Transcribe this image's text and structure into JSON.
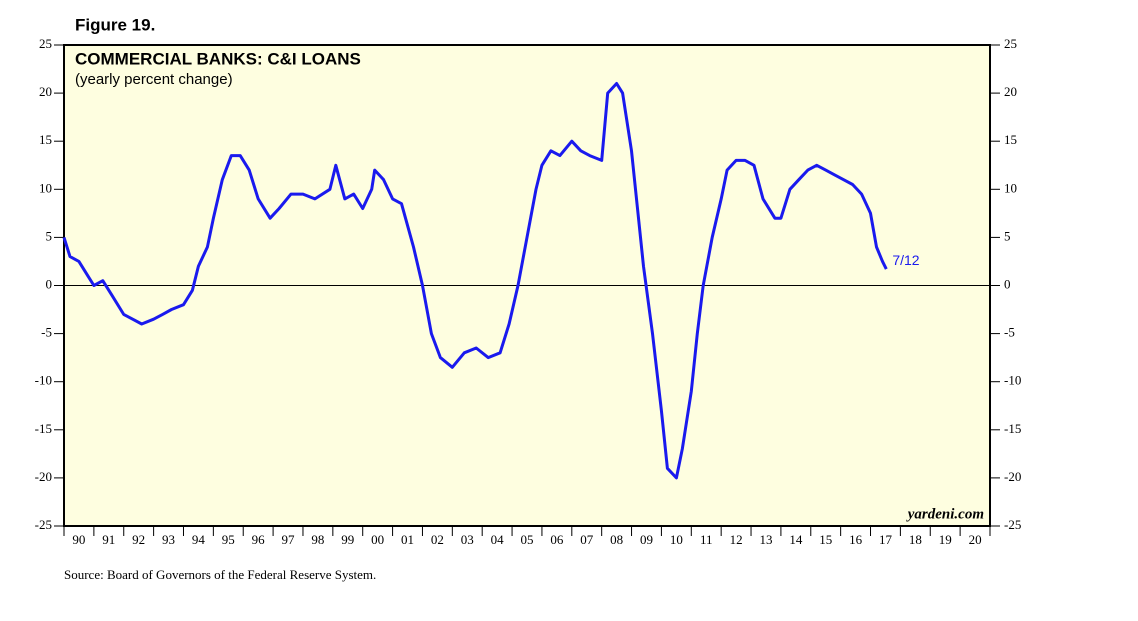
{
  "chart_data": {
    "type": "line",
    "figure_label": "Figure 19.",
    "title": "COMMERCIAL BANKS: C&I LOANS",
    "subtitle": "(yearly percent change)",
    "annotation": "7/12",
    "watermark": "yardeni.com",
    "source": "Source: Board of Governors of the Federal Reserve System.",
    "color": "#1a1aee",
    "x": [
      1990.0,
      1990.2,
      1990.5,
      1990.8,
      1991.0,
      1991.3,
      1991.6,
      1992.0,
      1992.3,
      1992.6,
      1993.0,
      1993.3,
      1993.6,
      1994.0,
      1994.3,
      1994.5,
      1994.8,
      1995.0,
      1995.3,
      1995.6,
      1995.9,
      1996.2,
      1996.5,
      1996.9,
      1997.2,
      1997.6,
      1998.0,
      1998.4,
      1998.9,
      1999.1,
      1999.4,
      1999.7,
      2000.0,
      2000.3,
      2000.4,
      2000.7,
      2001.0,
      2001.3,
      2001.7,
      2002.0,
      2002.3,
      2002.6,
      2003.0,
      2003.4,
      2003.8,
      2004.2,
      2004.6,
      2004.9,
      2005.2,
      2005.5,
      2005.8,
      2006.0,
      2006.3,
      2006.6,
      2007.0,
      2007.3,
      2007.6,
      2008.0,
      2008.2,
      2008.5,
      2008.7,
      2009.0,
      2009.2,
      2009.4,
      2009.7,
      2010.0,
      2010.2,
      2010.5,
      2010.7,
      2011.0,
      2011.2,
      2011.4,
      2011.7,
      2012.0,
      2012.2,
      2012.5,
      2012.8,
      2013.1,
      2013.4,
      2013.8,
      2014.0,
      2014.3,
      2014.6,
      2014.9,
      2015.2,
      2015.5,
      2015.8,
      2016.1,
      2016.4,
      2016.7,
      2017.0,
      2017.2,
      2017.4,
      2017.53
    ],
    "values": [
      5,
      3,
      2.5,
      1,
      0,
      0.5,
      -1,
      -3,
      -3.5,
      -4,
      -3.5,
      -3,
      -2.5,
      -2,
      -0.5,
      2,
      4,
      7,
      11,
      13.5,
      13.5,
      12,
      9,
      7,
      8,
      9.5,
      9.5,
      9,
      10,
      12.5,
      9,
      9.5,
      8,
      10,
      12,
      11,
      9,
      8.5,
      4,
      0,
      -5,
      -7.5,
      -8.5,
      -7,
      -6.5,
      -7.5,
      -7,
      -4,
      0,
      5,
      10,
      12.5,
      14,
      13.5,
      15,
      14,
      13.5,
      13,
      20,
      21,
      20,
      14,
      8,
      2,
      -5,
      -13,
      -19,
      -20,
      -17,
      -11,
      -5,
      0,
      5,
      9,
      12,
      13,
      13,
      12.5,
      9,
      7,
      7,
      10,
      11,
      12,
      12.5,
      12,
      11.5,
      11,
      10.5,
      9.5,
      7.5,
      4,
      2.5,
      1.7
    ],
    "xlim": [
      1990,
      2021
    ],
    "xticks": [
      {
        "value": 1990,
        "label": "90"
      },
      {
        "value": 1991,
        "label": "91"
      },
      {
        "value": 1992,
        "label": "92"
      },
      {
        "value": 1993,
        "label": "93"
      },
      {
        "value": 1994,
        "label": "94"
      },
      {
        "value": 1995,
        "label": "95"
      },
      {
        "value": 1996,
        "label": "96"
      },
      {
        "value": 1997,
        "label": "97"
      },
      {
        "value": 1998,
        "label": "98"
      },
      {
        "value": 1999,
        "label": "99"
      },
      {
        "value": 2000,
        "label": "00"
      },
      {
        "value": 2001,
        "label": "01"
      },
      {
        "value": 2002,
        "label": "02"
      },
      {
        "value": 2003,
        "label": "03"
      },
      {
        "value": 2004,
        "label": "04"
      },
      {
        "value": 2005,
        "label": "05"
      },
      {
        "value": 2006,
        "label": "06"
      },
      {
        "value": 2007,
        "label": "07"
      },
      {
        "value": 2008,
        "label": "08"
      },
      {
        "value": 2009,
        "label": "09"
      },
      {
        "value": 2010,
        "label": "10"
      },
      {
        "value": 2011,
        "label": "11"
      },
      {
        "value": 2012,
        "label": "12"
      },
      {
        "value": 2013,
        "label": "13"
      },
      {
        "value": 2014,
        "label": "14"
      },
      {
        "value": 2015,
        "label": "15"
      },
      {
        "value": 2016,
        "label": "16"
      },
      {
        "value": 2017,
        "label": "17"
      },
      {
        "value": 2018,
        "label": "18"
      },
      {
        "value": 2019,
        "label": "19"
      },
      {
        "value": 2020,
        "label": "20"
      }
    ],
    "ylim": [
      -25,
      25
    ],
    "yticks": [
      -25,
      -20,
      -15,
      -10,
      -5,
      0,
      5,
      10,
      15,
      20,
      25
    ]
  }
}
